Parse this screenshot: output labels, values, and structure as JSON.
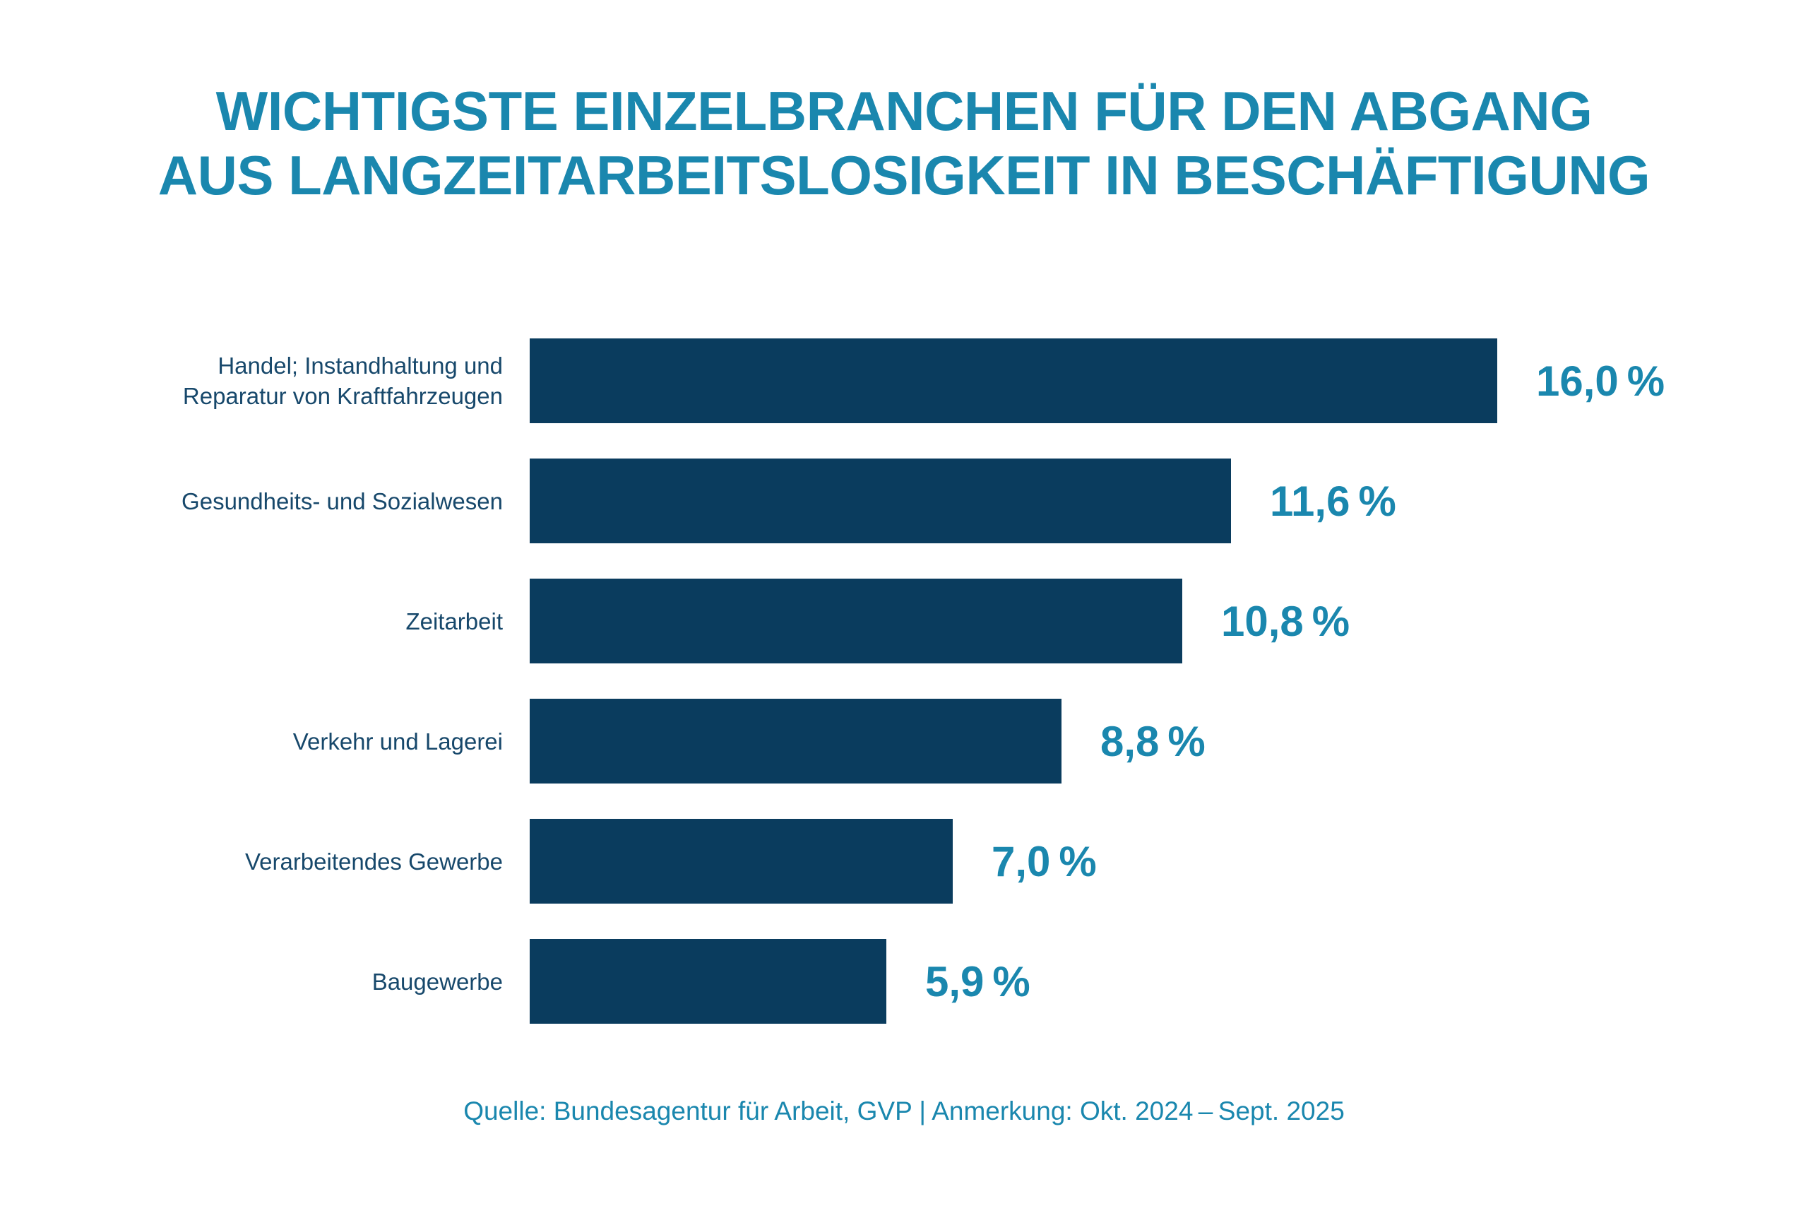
{
  "title": {
    "line1": "WICHTIGSTE EINZELBRANCHEN FÜR DEN ABGANG",
    "line2": "AUS LANGZEITARBEITSLOSIGKEIT IN BESCHÄFTIGUNG"
  },
  "footer": {
    "text": "Quelle: Bundesagentur für Arbeit, GVP | Anmerkung: Okt. 2024 – Sept. 2025"
  },
  "colors": {
    "accent": "#1a87ae",
    "bar": "#0a3c5e",
    "label": "#17486b",
    "background": "#ffffff"
  },
  "chart_data": {
    "type": "bar",
    "orientation": "horizontal",
    "title": "Wichtigste Einzelbranchen für den Abgang aus Langzeitarbeitslosigkeit in Beschäftigung",
    "xlabel": "",
    "ylabel": "",
    "xlim": [
      0,
      16.0
    ],
    "grid": false,
    "legend": false,
    "unit": "%",
    "categories": [
      "Handel; Instandhaltung und Reparatur von Kraftfahrzeugen",
      "Gesundheits- und Sozialwesen",
      "Zeitarbeit",
      "Verkehr und Lagerei",
      "Verarbeitendes Gewerbe",
      "Baugewerbe"
    ],
    "values": [
      16.0,
      11.6,
      10.8,
      8.8,
      7.0,
      5.9
    ],
    "value_labels": [
      "16,0 %",
      "11,6 %",
      "10,8 %",
      "8,8 %",
      "7,0 %",
      "5,9 %"
    ]
  }
}
